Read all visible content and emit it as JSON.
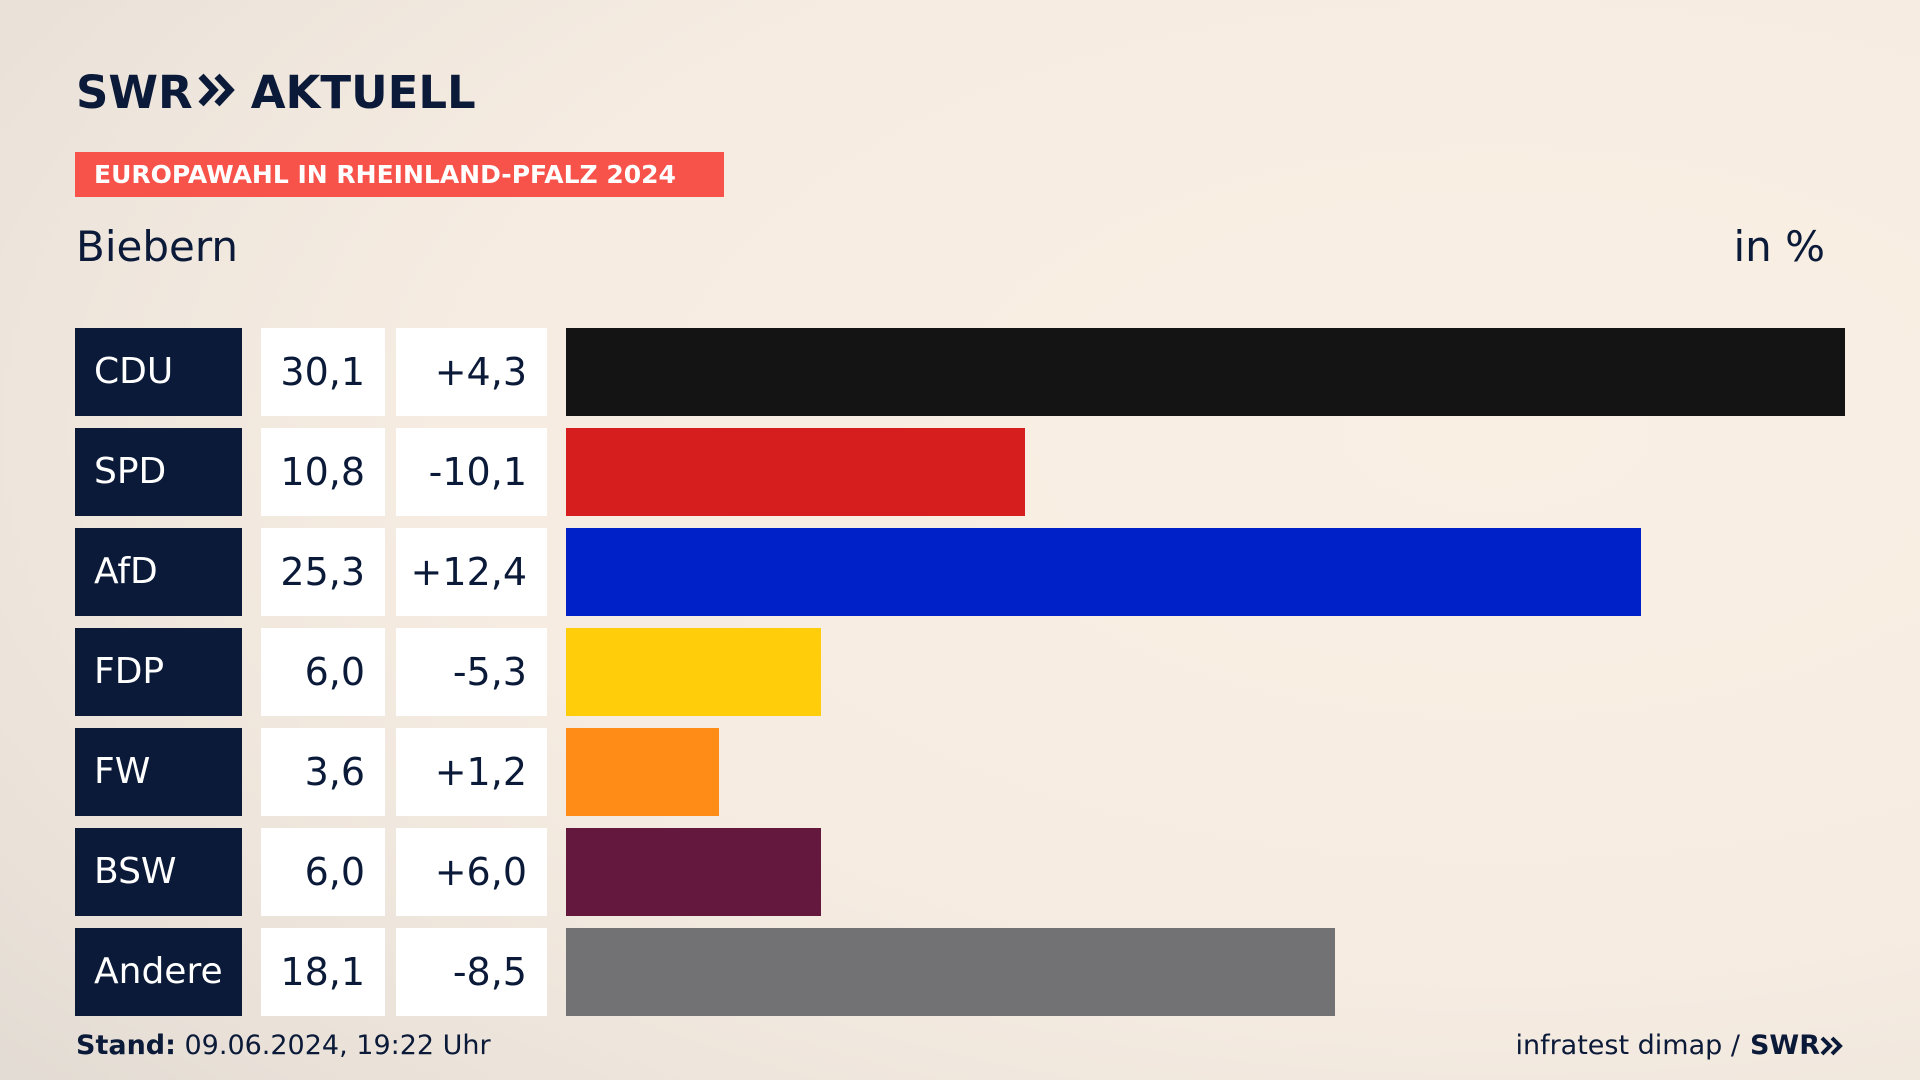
{
  "brand": {
    "swr": "SWR",
    "aktuell": "AKTUELL"
  },
  "banner": "EUROPAWAHL IN RHEINLAND-PFALZ 2024",
  "subtitle": "Biebern",
  "unit": "in %",
  "footer": {
    "stand_label": "Stand:",
    "stand_value": " 09.06.2024, 19:22 Uhr",
    "source": "infratest dimap / ",
    "source_brand": "SWR"
  },
  "chart_data": {
    "type": "bar",
    "title": "Biebern",
    "ylabel": "in %",
    "categories": [
      "CDU",
      "SPD",
      "AfD",
      "FDP",
      "FW",
      "BSW",
      "Andere"
    ],
    "values": [
      30.1,
      10.8,
      25.3,
      6.0,
      3.6,
      6.0,
      18.1
    ],
    "value_labels": [
      "30,1",
      "10,8",
      "25,3",
      "6,0",
      "3,6",
      "6,0",
      "18,1"
    ],
    "changes": [
      4.3,
      -10.1,
      12.4,
      -5.3,
      1.2,
      6.0,
      -8.5
    ],
    "change_labels": [
      "+4,3",
      "-10,1",
      "+12,4",
      "-5,3",
      "+1,2",
      "+6,0",
      "-8,5"
    ],
    "colors": [
      "#141414",
      "#d61e1e",
      "#0021c7",
      "#ffcd0a",
      "#ff8c16",
      "#65183e",
      "#727274"
    ],
    "xlim": [
      0,
      30.1
    ],
    "orientation": "horizontal"
  }
}
